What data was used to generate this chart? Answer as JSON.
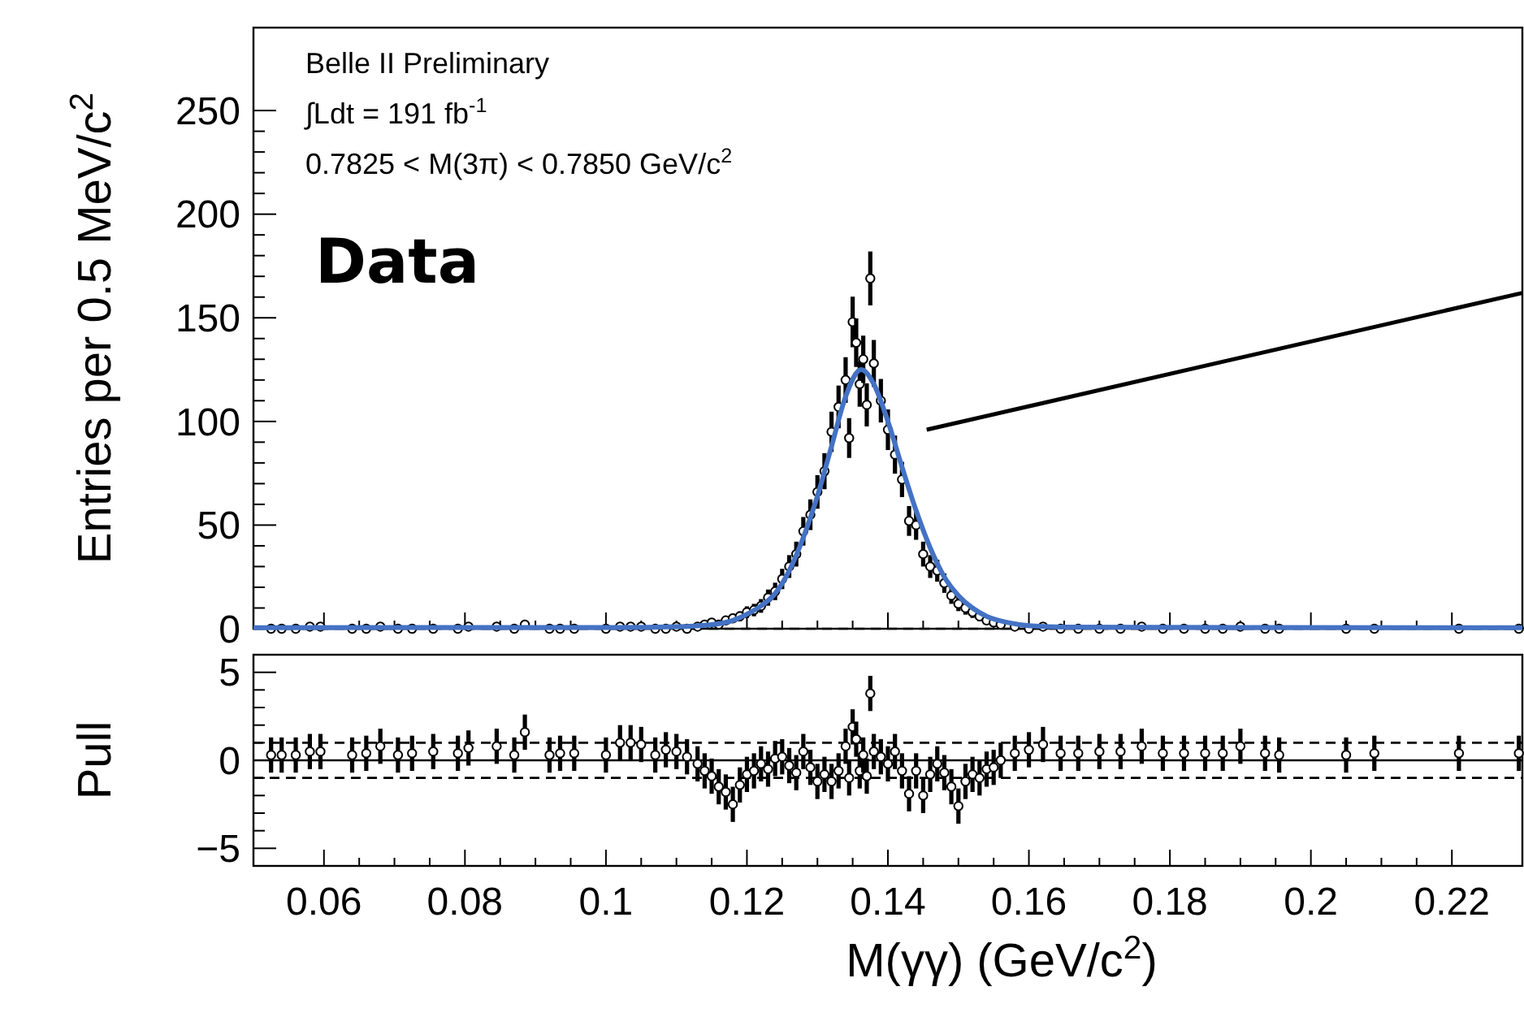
{
  "chart_data": [
    {
      "type": "scatter",
      "ylabel": "Entries per 0.5 MeV/c$^{2}$",
      "xlim": [
        0.05,
        0.23
      ],
      "xticks": [
        0.06,
        0.08,
        0.1,
        0.12,
        0.14,
        0.16,
        0.18,
        0.2,
        0.22
      ],
      "ylim": [
        0,
        290
      ],
      "yticks": [
        0,
        50,
        100,
        150,
        200,
        250
      ],
      "tick_labels": "y",
      "marker": "circle",
      "annotations": [
        "Belle II Preliminary",
        "∫Ldt = 191 fb$^{-1}$",
        "0.7825 < M(3π) < 0.7850 GeV/c$^{2}$",
        "Data"
      ],
      "ref_lines": [
        {
          "axis": "y",
          "value": 0,
          "line_style": "dashed",
          "color": "#000000"
        }
      ],
      "series": [
        {
          "type": "scatter",
          "color": "#000000",
          "x": [
            0.0525,
            0.054,
            0.056,
            0.058,
            0.0595,
            0.064,
            0.066,
            0.068,
            0.0705,
            0.0725,
            0.0755,
            0.079,
            0.0805,
            0.0845,
            0.087,
            0.0885,
            0.092,
            0.0935,
            0.0955,
            0.1,
            0.102,
            0.1035,
            0.105,
            0.107,
            0.1085,
            0.11,
            0.1115,
            0.113,
            0.114,
            0.115,
            0.116,
            0.117,
            0.118,
            0.119,
            0.12,
            0.121,
            0.122,
            0.123,
            0.124,
            0.125,
            0.126,
            0.127,
            0.128,
            0.129,
            0.13,
            0.131,
            0.132,
            0.133,
            0.134,
            0.1345,
            0.135,
            0.1355,
            0.136,
            0.1365,
            0.137,
            0.1375,
            0.138,
            0.139,
            0.14,
            0.141,
            0.142,
            0.143,
            0.144,
            0.145,
            0.146,
            0.147,
            0.148,
            0.149,
            0.15,
            0.151,
            0.152,
            0.153,
            0.154,
            0.155,
            0.156,
            0.158,
            0.16,
            0.162,
            0.1645,
            0.167,
            0.17,
            0.173,
            0.176,
            0.179,
            0.182,
            0.185,
            0.1875,
            0.19,
            0.1935,
            0.1955,
            0.205,
            0.209,
            0.221,
            0.2295
          ],
          "values": [
            0,
            0,
            0,
            1,
            1,
            0,
            0,
            1,
            0,
            0,
            0,
            0,
            1,
            1,
            0,
            2,
            0,
            0,
            0,
            0,
            1,
            1,
            1,
            0,
            0,
            1,
            0,
            1,
            2,
            3,
            2,
            4,
            5,
            6,
            8,
            9,
            11,
            15,
            18,
            24,
            30,
            36,
            47,
            55,
            66,
            76,
            95,
            107,
            120,
            92,
            148,
            138,
            118,
            130,
            108,
            169,
            128,
            110,
            96,
            84,
            72,
            52,
            50,
            36,
            30,
            28,
            22,
            16,
            12,
            10,
            8,
            6,
            4,
            3,
            2,
            1,
            0,
            1,
            0,
            0,
            0,
            0,
            1,
            0,
            0,
            0,
            0,
            1,
            0,
            0,
            0,
            0,
            0,
            0
          ],
          "errors": [
            null,
            null,
            null,
            1,
            1,
            null,
            null,
            1,
            null,
            null,
            null,
            null,
            1,
            1,
            null,
            1.4,
            null,
            null,
            null,
            null,
            1,
            1,
            1,
            null,
            null,
            1,
            null,
            1,
            1.4,
            1.7,
            1.4,
            2,
            2.2,
            2.4,
            2.8,
            3,
            3.3,
            3.9,
            4.2,
            4.9,
            5.5,
            6,
            6.9,
            7.4,
            8.1,
            8.7,
            9.7,
            10.3,
            11,
            9.6,
            12.2,
            11.7,
            10.9,
            11.4,
            10.4,
            13,
            11.3,
            10.5,
            9.8,
            9.2,
            8.5,
            7.2,
            7.1,
            6,
            5.5,
            5.3,
            4.7,
            4,
            3.5,
            3.2,
            2.8,
            2.4,
            2,
            1.7,
            1.4,
            1,
            null,
            1,
            null,
            null,
            null,
            null,
            1,
            null,
            null,
            null,
            null,
            1,
            null,
            null,
            null,
            null,
            null,
            null
          ]
        },
        {
          "type": "line",
          "marker": "none",
          "color": "#4472c4",
          "x": [
            0.05,
            0.1,
            0.11,
            0.115,
            0.118,
            0.12,
            0.122,
            0.124,
            0.126,
            0.128,
            0.13,
            0.132,
            0.134,
            0.1362,
            0.138,
            0.14,
            0.142,
            0.144,
            0.146,
            0.148,
            0.15,
            0.152,
            0.154,
            0.157,
            0.16,
            0.165,
            0.23
          ],
          "values": [
            0.5,
            0.6,
            1,
            2,
            4,
            7,
            11,
            17,
            28,
            44,
            64,
            88,
            112,
            125,
            118,
            100,
            78,
            57,
            39,
            25,
            16,
            10,
            6,
            3,
            1.5,
            0.8,
            0.5
          ]
        },
        {
          "type": "line",
          "marker": "none",
          "color": "#000000",
          "x": [
            0.1455,
            0.23
          ],
          "values": [
            96,
            162
          ]
        }
      ]
    },
    {
      "type": "scatter",
      "ylabel": "Pull",
      "xlabel": "M(γγ) (GeV/c$^{2}$)",
      "xlim": [
        0.05,
        0.23
      ],
      "xticks": [
        0.06,
        0.08,
        0.1,
        0.12,
        0.14,
        0.16,
        0.18,
        0.2,
        0.22
      ],
      "ylim": [
        -6,
        6
      ],
      "yticks": [
        {
          "value": -5,
          "label": "−5"
        },
        0,
        5
      ],
      "marker": "circle",
      "ref_lines": [
        {
          "axis": "y",
          "value": 0,
          "line_style": "solid",
          "color": "#000000"
        },
        {
          "axis": "y",
          "value": 1,
          "line_style": "dashed",
          "color": "#000000"
        },
        {
          "axis": "y",
          "value": -1,
          "line_style": "dashed",
          "color": "#000000"
        }
      ],
      "series": [
        {
          "type": "scatter",
          "color": "#000000",
          "x": [
            0.0525,
            0.054,
            0.056,
            0.058,
            0.0595,
            0.064,
            0.066,
            0.068,
            0.0705,
            0.0725,
            0.0755,
            0.079,
            0.0805,
            0.0845,
            0.087,
            0.0885,
            0.092,
            0.0935,
            0.0955,
            0.1,
            0.102,
            0.1035,
            0.105,
            0.107,
            0.1085,
            0.11,
            0.1115,
            0.113,
            0.114,
            0.115,
            0.116,
            0.117,
            0.118,
            0.119,
            0.12,
            0.121,
            0.122,
            0.123,
            0.124,
            0.125,
            0.126,
            0.127,
            0.128,
            0.129,
            0.13,
            0.131,
            0.132,
            0.133,
            0.134,
            0.1345,
            0.135,
            0.1355,
            0.136,
            0.1365,
            0.137,
            0.1375,
            0.138,
            0.139,
            0.14,
            0.141,
            0.142,
            0.143,
            0.144,
            0.145,
            0.146,
            0.147,
            0.148,
            0.149,
            0.15,
            0.151,
            0.152,
            0.153,
            0.154,
            0.155,
            0.156,
            0.158,
            0.16,
            0.162,
            0.1645,
            0.167,
            0.17,
            0.173,
            0.176,
            0.179,
            0.182,
            0.185,
            0.1875,
            0.19,
            0.1935,
            0.1955,
            0.205,
            0.209,
            0.221,
            0.2295
          ],
          "values": [
            0.3,
            0.3,
            0.3,
            0.5,
            0.5,
            0.3,
            0.4,
            0.8,
            0.3,
            0.4,
            0.5,
            0.4,
            0.7,
            0.8,
            0.3,
            1.6,
            0.3,
            0.4,
            0.4,
            0.3,
            1,
            1,
            0.9,
            0.3,
            0.6,
            0.5,
            0.2,
            -0.2,
            -0.6,
            -0.9,
            -1.5,
            -1.8,
            -2.5,
            -1.4,
            -0.8,
            -0.6,
            -0.2,
            -0.5,
            0.1,
            0.2,
            -0.3,
            -0.7,
            0.5,
            -0.4,
            -1.2,
            -0.8,
            -1.2,
            -0.6,
            0.8,
            -1,
            1.9,
            1.2,
            -0.6,
            0.3,
            -0.9,
            3.8,
            0.5,
            0.2,
            -0.2,
            0.5,
            -0.6,
            -1.9,
            -0.6,
            -2,
            -0.8,
            -0.2,
            -0.7,
            -1.5,
            -2.6,
            -1.2,
            -0.8,
            -1,
            -0.5,
            -0.4,
            0,
            0.4,
            0.6,
            0.9,
            0.4,
            0.4,
            0.5,
            0.5,
            0.8,
            0.4,
            0.4,
            0.4,
            0.4,
            0.8,
            0.4,
            0.3,
            0.3,
            0.4,
            0.4,
            0.4
          ],
          "errors": [
            1,
            1,
            1,
            1,
            1,
            1,
            1,
            1,
            1,
            1,
            1,
            1,
            1,
            1,
            1,
            1,
            1,
            1,
            1,
            1,
            1,
            1,
            1,
            1,
            1,
            1,
            1,
            1,
            1,
            1,
            1,
            1,
            1,
            1,
            1,
            1,
            1,
            1,
            1,
            1,
            1,
            1,
            1,
            1,
            1,
            1,
            1,
            1,
            1,
            1,
            1,
            1,
            1,
            1,
            1,
            1,
            1,
            1,
            1,
            1,
            1,
            1,
            1,
            1,
            1,
            1,
            1,
            1,
            1,
            1,
            1,
            1,
            1,
            1,
            1,
            1,
            1,
            1,
            1,
            1,
            1,
            1,
            1,
            1,
            1,
            1,
            1,
            1,
            1,
            1,
            1,
            1,
            1,
            1
          ]
        }
      ]
    }
  ]
}
